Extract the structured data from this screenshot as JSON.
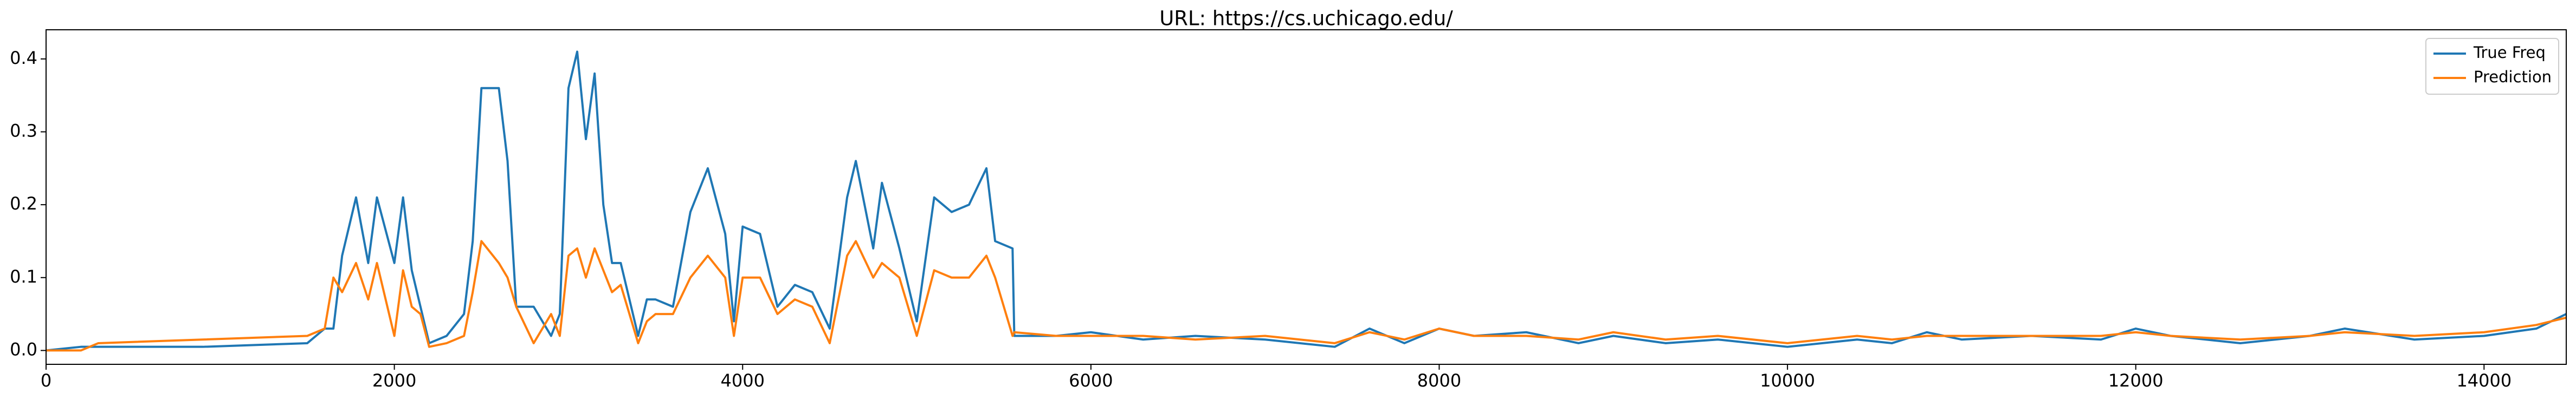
{
  "chart_data": {
    "type": "line",
    "title": "URL: https://cs.uchicago.edu/",
    "x": [
      0,
      200,
      300,
      900,
      1500,
      1600,
      1650,
      1700,
      1780,
      1850,
      1900,
      2000,
      2050,
      2100,
      2150,
      2200,
      2300,
      2400,
      2450,
      2500,
      2600,
      2650,
      2700,
      2800,
      2900,
      2950,
      3000,
      3050,
      3100,
      3150,
      3200,
      3250,
      3300,
      3400,
      3450,
      3500,
      3600,
      3700,
      3800,
      3900,
      3950,
      4000,
      4100,
      4200,
      4300,
      4400,
      4500,
      4600,
      4650,
      4750,
      4800,
      4900,
      5000,
      5100,
      5200,
      5300,
      5400,
      5450,
      5550,
      5560,
      5800,
      6000,
      6300,
      6600,
      7000,
      7400,
      7600,
      7800,
      8000,
      8200,
      8500,
      8800,
      9000,
      9300,
      9600,
      10000,
      10400,
      10600,
      10800,
      11000,
      11400,
      11800,
      12000,
      12200,
      12600,
      13000,
      13200,
      13600,
      14000,
      14300,
      14472
    ],
    "series": [
      {
        "name": "True Freq",
        "color": "#1f77b4",
        "values": [
          0,
          0.005,
          0.005,
          0.005,
          0.01,
          0.03,
          0.03,
          0.13,
          0.21,
          0.12,
          0.21,
          0.12,
          0.21,
          0.11,
          0.06,
          0.01,
          0.02,
          0.05,
          0.15,
          0.36,
          0.36,
          0.26,
          0.06,
          0.06,
          0.02,
          0.05,
          0.36,
          0.41,
          0.29,
          0.38,
          0.2,
          0.12,
          0.12,
          0.02,
          0.07,
          0.07,
          0.06,
          0.19,
          0.25,
          0.16,
          0.04,
          0.17,
          0.16,
          0.06,
          0.09,
          0.08,
          0.03,
          0.21,
          0.26,
          0.14,
          0.23,
          0.14,
          0.04,
          0.21,
          0.19,
          0.2,
          0.25,
          0.15,
          0.14,
          0.02,
          0.02,
          0.025,
          0.015,
          0.02,
          0.015,
          0.005,
          0.03,
          0.01,
          0.03,
          0.02,
          0.025,
          0.01,
          0.02,
          0.01,
          0.015,
          0.005,
          0.015,
          0.01,
          0.025,
          0.015,
          0.02,
          0.015,
          0.03,
          0.02,
          0.01,
          0.02,
          0.03,
          0.015,
          0.02,
          0.03,
          0.05
        ]
      },
      {
        "name": "Prediction",
        "color": "#ff7f0e",
        "values": [
          0,
          0,
          0.01,
          0.015,
          0.02,
          0.03,
          0.1,
          0.08,
          0.12,
          0.07,
          0.12,
          0.02,
          0.11,
          0.06,
          0.05,
          0.005,
          0.01,
          0.02,
          0.08,
          0.15,
          0.12,
          0.1,
          0.06,
          0.01,
          0.05,
          0.02,
          0.13,
          0.14,
          0.1,
          0.14,
          0.11,
          0.08,
          0.09,
          0.01,
          0.04,
          0.05,
          0.05,
          0.1,
          0.13,
          0.1,
          0.02,
          0.1,
          0.1,
          0.05,
          0.07,
          0.06,
          0.01,
          0.13,
          0.15,
          0.1,
          0.12,
          0.1,
          0.02,
          0.11,
          0.1,
          0.1,
          0.13,
          0.1,
          0.02,
          0.025,
          0.02,
          0.02,
          0.02,
          0.015,
          0.02,
          0.01,
          0.025,
          0.015,
          0.03,
          0.02,
          0.02,
          0.015,
          0.025,
          0.015,
          0.02,
          0.01,
          0.02,
          0.015,
          0.02,
          0.02,
          0.02,
          0.02,
          0.025,
          0.02,
          0.015,
          0.02,
          0.025,
          0.02,
          0.025,
          0.035,
          0.045
        ]
      }
    ],
    "xlim": [
      0,
      14472
    ],
    "ylim": [
      -0.019,
      0.44
    ],
    "xticks": [
      0,
      2000,
      4000,
      6000,
      8000,
      10000,
      12000,
      14000
    ],
    "yticks": [
      {
        "value": 0,
        "label": "0.0"
      },
      0.1,
      0.2,
      0.3,
      0.4
    ],
    "legend": "upper right"
  }
}
